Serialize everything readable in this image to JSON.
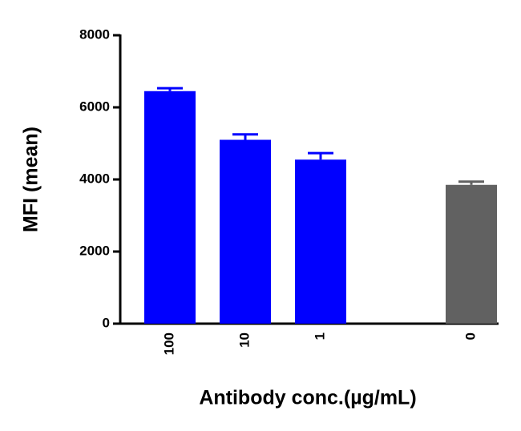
{
  "chart_data": {
    "type": "bar",
    "x_label": "Antibody conc.(µg/mL)",
    "y_label": "MFI (mean)",
    "categories": [
      "100",
      "10",
      "1",
      null,
      "0"
    ],
    "values": [
      6450,
      5100,
      4550,
      null,
      3850
    ],
    "errors": [
      80,
      150,
      180,
      null,
      90
    ],
    "colors": [
      "#0000ff",
      "#0000ff",
      "#0000ff",
      null,
      "#616161"
    ],
    "ylim": [
      0,
      8000
    ],
    "yticks": [
      0,
      2000,
      4000,
      6000,
      8000
    ],
    "grid": false
  }
}
